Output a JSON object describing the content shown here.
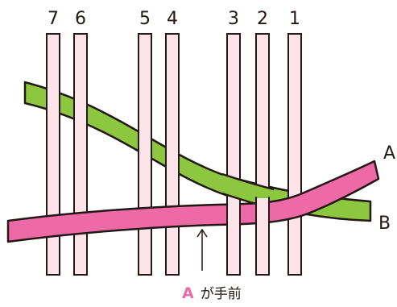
{
  "strand_numbers": [
    "7",
    "6",
    "5",
    "4",
    "3",
    "2",
    "1"
  ],
  "bands": {
    "a": {
      "label": "A",
      "color": "#ee6aa7"
    },
    "b": {
      "label": "B",
      "color": "#8dc63f"
    }
  },
  "strand_color": "#fde3ea",
  "outline_color": "#231815",
  "caption": {
    "highlight": "A",
    "rest": "が手前"
  }
}
